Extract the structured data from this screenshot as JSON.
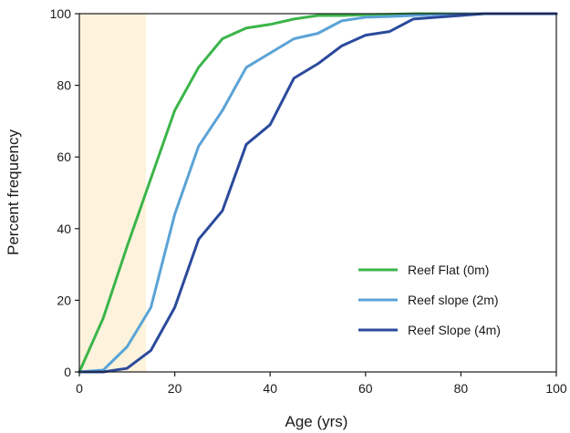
{
  "chart_data": {
    "type": "line",
    "xlabel": "Age (yrs)",
    "ylabel": "Percent frequency",
    "xlim": [
      0,
      100
    ],
    "ylim": [
      0,
      100
    ],
    "xticks": [
      0,
      20,
      40,
      60,
      80,
      100
    ],
    "yticks": [
      0,
      20,
      40,
      60,
      80,
      100
    ],
    "grid": false,
    "legend_position": "bottom-right",
    "shaded_region": {
      "x": [
        0,
        14
      ],
      "color": "#fdf3dc"
    },
    "x": [
      0,
      5,
      10,
      15,
      20,
      25,
      30,
      35,
      40,
      45,
      50,
      55,
      60,
      65,
      70,
      75,
      80,
      85,
      90,
      95,
      100
    ],
    "series": [
      {
        "name": "Reef Flat (0m)",
        "color": "#3cb54a",
        "values": [
          0,
          15,
          35,
          54,
          73,
          85,
          93,
          96,
          97,
          98.5,
          99.5,
          99.5,
          99.7,
          99.8,
          100,
          100,
          100,
          100,
          100,
          100,
          100
        ]
      },
      {
        "name": "Reef slope (2m)",
        "color": "#5ba3d6",
        "values": [
          0,
          0.5,
          7,
          18,
          44,
          63,
          73,
          85,
          89,
          93,
          94.5,
          98,
          99,
          99.2,
          99.5,
          99.8,
          100,
          100,
          100,
          100,
          100
        ]
      },
      {
        "name": "Reef Slope (4m)",
        "color": "#2b4a9c",
        "values": [
          0,
          0,
          1,
          6,
          18,
          37,
          45,
          63.5,
          69,
          82,
          86,
          91,
          94,
          95,
          98.5,
          99,
          99.5,
          100,
          100,
          100,
          100
        ]
      }
    ]
  }
}
